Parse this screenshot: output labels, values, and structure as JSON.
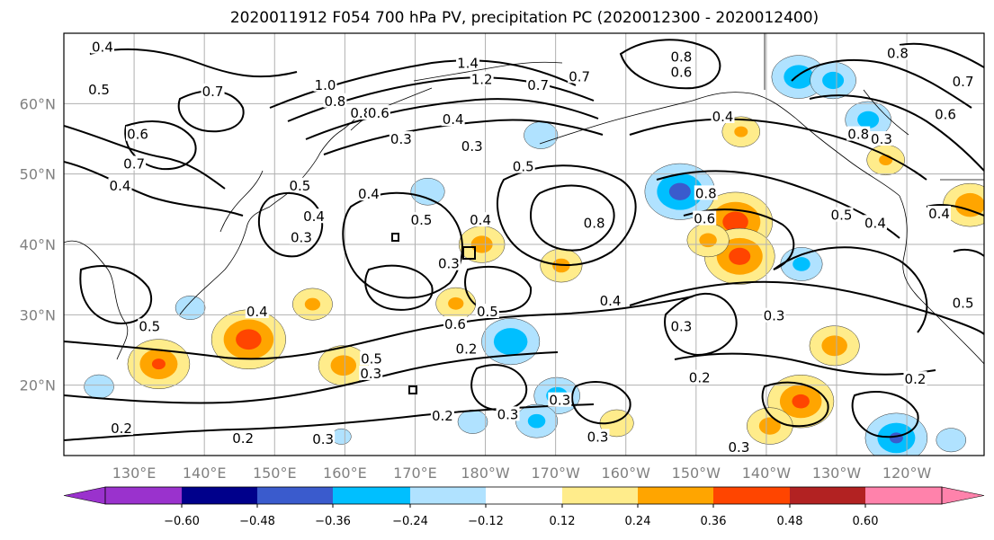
{
  "chart_data": {
    "type": "map",
    "title": "2020011912 F054 700 hPa PV, precipitation PC (2020012300 - 2020012400)",
    "x_ticks": [
      "130°E",
      "140°E",
      "150°E",
      "160°E",
      "170°E",
      "180°W",
      "170°W",
      "160°W",
      "150°W",
      "140°W",
      "130°W",
      "120°W"
    ],
    "x_tick_lon": [
      130,
      140,
      150,
      160,
      170,
      180,
      190,
      200,
      210,
      220,
      230,
      240
    ],
    "y_ticks": [
      "60°N",
      "50°N",
      "40°N",
      "30°N",
      "20°N"
    ],
    "y_tick_lat": [
      60,
      50,
      40,
      30,
      20
    ],
    "lon_range": [
      120,
      251
    ],
    "lat_range": [
      10,
      70
    ],
    "grid": true,
    "colorbar": {
      "orientation": "horizontal",
      "extend": "both",
      "ticks": [
        "−0.60",
        "−0.48",
        "−0.36",
        "−0.24",
        "−0.12",
        "0.12",
        "0.24",
        "0.36",
        "0.48",
        "0.60"
      ],
      "colors": [
        "#9a32cd",
        "#00008b",
        "#3a5bcd",
        "#00bfff",
        "#b0e2ff",
        "#ffffff",
        "#ffec8b",
        "#ffa500",
        "#ff4500",
        "#b22222",
        "#ff82ab"
      ]
    },
    "contour_labels": [
      {
        "text": "0.4",
        "lon": 125.5,
        "lat": 67.9
      },
      {
        "text": "0.5",
        "lon": 125.0,
        "lat": 61.8
      },
      {
        "text": "0.7",
        "lon": 141.2,
        "lat": 61.6
      },
      {
        "text": "0.6",
        "lon": 130.5,
        "lat": 55.5
      },
      {
        "text": "0.7",
        "lon": 130.0,
        "lat": 51.3
      },
      {
        "text": "1.0",
        "lon": 157.2,
        "lat": 62.5
      },
      {
        "text": "0.8",
        "lon": 158.6,
        "lat": 60.2
      },
      {
        "text": "1.4",
        "lon": 177.5,
        "lat": 65.6
      },
      {
        "text": "1.2",
        "lon": 179.5,
        "lat": 63.3
      },
      {
        "text": "0.7",
        "lon": 187.5,
        "lat": 62.5
      },
      {
        "text": "0.8",
        "lon": 162.3,
        "lat": 58.5
      },
      {
        "text": "0.6",
        "lon": 164.8,
        "lat": 58.5
      },
      {
        "text": "0.4",
        "lon": 175.4,
        "lat": 57.6
      },
      {
        "text": "0.3",
        "lon": 168.0,
        "lat": 54.8
      },
      {
        "text": "0.3",
        "lon": 178.1,
        "lat": 53.8
      },
      {
        "text": "0.5",
        "lon": 185.4,
        "lat": 50.9
      },
      {
        "text": "0.4",
        "lon": 163.4,
        "lat": 47.0
      },
      {
        "text": "0.5",
        "lon": 153.6,
        "lat": 48.2
      },
      {
        "text": "0.4",
        "lon": 155.6,
        "lat": 43.8
      },
      {
        "text": "0.3",
        "lon": 153.8,
        "lat": 40.8
      },
      {
        "text": "0.5",
        "lon": 170.9,
        "lat": 43.3
      },
      {
        "text": "0.4",
        "lon": 179.3,
        "lat": 43.3
      },
      {
        "text": "0.8",
        "lon": 195.5,
        "lat": 42.9
      },
      {
        "text": "0.3",
        "lon": 174.8,
        "lat": 37.1
      },
      {
        "text": "0.8",
        "lon": 207.9,
        "lat": 66.5
      },
      {
        "text": "0.6",
        "lon": 207.9,
        "lat": 64.3
      },
      {
        "text": "0.7",
        "lon": 193.4,
        "lat": 63.7
      },
      {
        "text": "0.4",
        "lon": 213.8,
        "lat": 58.0
      },
      {
        "text": "0.8",
        "lon": 211.4,
        "lat": 47.1
      },
      {
        "text": "0.6",
        "lon": 211.2,
        "lat": 43.5
      },
      {
        "text": "0.5",
        "lon": 230.7,
        "lat": 44.0
      },
      {
        "text": "0.8",
        "lon": 233.1,
        "lat": 55.5
      },
      {
        "text": "0.4",
        "lon": 235.5,
        "lat": 42.9
      },
      {
        "text": "0.3",
        "lon": 236.4,
        "lat": 54.8
      },
      {
        "text": "0.8",
        "lon": 238.7,
        "lat": 67.0
      },
      {
        "text": "0.6",
        "lon": 245.5,
        "lat": 58.3
      },
      {
        "text": "0.4",
        "lon": 128.0,
        "lat": 48.2
      },
      {
        "text": "0.4",
        "lon": 147.5,
        "lat": 30.3
      },
      {
        "text": "0.5",
        "lon": 132.2,
        "lat": 28.2
      },
      {
        "text": "0.6",
        "lon": 175.7,
        "lat": 28.5
      },
      {
        "text": "0.5",
        "lon": 180.3,
        "lat": 30.3
      },
      {
        "text": "0.4",
        "lon": 197.8,
        "lat": 31.8
      },
      {
        "text": "0.3",
        "lon": 207.9,
        "lat": 28.2
      },
      {
        "text": "0.3",
        "lon": 221.1,
        "lat": 29.7
      },
      {
        "text": "0.5",
        "lon": 163.8,
        "lat": 23.6
      },
      {
        "text": "0.3",
        "lon": 163.7,
        "lat": 21.5
      },
      {
        "text": "0.2",
        "lon": 177.3,
        "lat": 25.0
      },
      {
        "text": "0.2",
        "lon": 210.5,
        "lat": 20.9
      },
      {
        "text": "0.2",
        "lon": 241.2,
        "lat": 20.7
      },
      {
        "text": "0.2",
        "lon": 173.9,
        "lat": 15.5
      },
      {
        "text": "0.3",
        "lon": 183.2,
        "lat": 15.7
      },
      {
        "text": "0.3",
        "lon": 190.6,
        "lat": 17.7
      },
      {
        "text": "0.3",
        "lon": 156.9,
        "lat": 12.2
      },
      {
        "text": "0.2",
        "lon": 145.5,
        "lat": 12.3
      },
      {
        "text": "0.2",
        "lon": 128.2,
        "lat": 13.7
      },
      {
        "text": "0.3",
        "lon": 196.0,
        "lat": 12.5
      },
      {
        "text": "0.3",
        "lon": 216.1,
        "lat": 11.0
      },
      {
        "text": "0.5",
        "lon": 248.0,
        "lat": 31.5
      },
      {
        "text": "0.4",
        "lon": 244.6,
        "lat": 44.2
      },
      {
        "text": "0.7",
        "lon": 248.0,
        "lat": 63.0
      }
    ],
    "precip_anomaly_blobs": [
      {
        "lon": 146.3,
        "lat": 26.5,
        "value": 0.42
      },
      {
        "lon": 133.5,
        "lat": 23.0,
        "value": 0.36
      },
      {
        "lon": 159.8,
        "lat": 22.8,
        "value": 0.3
      },
      {
        "lon": 179.5,
        "lat": 40.0,
        "value": 0.28
      },
      {
        "lon": 190.8,
        "lat": 37.0,
        "value": 0.26
      },
      {
        "lon": 175.8,
        "lat": 31.6,
        "value": 0.25
      },
      {
        "lon": 155.4,
        "lat": 31.5,
        "value": 0.25
      },
      {
        "lon": 215.6,
        "lat": 43.2,
        "value": 0.42
      },
      {
        "lon": 216.2,
        "lat": 38.3,
        "value": 0.4
      },
      {
        "lon": 211.7,
        "lat": 40.6,
        "value": 0.26
      },
      {
        "lon": 216.4,
        "lat": 56.0,
        "value": 0.24
      },
      {
        "lon": 224.9,
        "lat": 17.7,
        "value": 0.38
      },
      {
        "lon": 220.5,
        "lat": 14.2,
        "value": 0.28
      },
      {
        "lon": 229.7,
        "lat": 25.6,
        "value": 0.3
      },
      {
        "lon": 249.0,
        "lat": 45.6,
        "value": 0.32
      },
      {
        "lon": 237.0,
        "lat": 52.0,
        "value": 0.24
      },
      {
        "lon": 198.7,
        "lat": 14.6,
        "value": 0.22
      },
      {
        "lon": 207.7,
        "lat": 47.5,
        "value": -0.4
      },
      {
        "lon": 183.6,
        "lat": 26.2,
        "value": -0.34
      },
      {
        "lon": 190.2,
        "lat": 18.5,
        "value": -0.28
      },
      {
        "lon": 187.3,
        "lat": 14.9,
        "value": -0.26
      },
      {
        "lon": 225.0,
        "lat": 37.2,
        "value": -0.26
      },
      {
        "lon": 238.5,
        "lat": 12.5,
        "value": -0.36
      },
      {
        "lon": 224.6,
        "lat": 63.8,
        "value": -0.32
      },
      {
        "lon": 229.5,
        "lat": 63.3,
        "value": -0.28
      },
      {
        "lon": 234.5,
        "lat": 57.7,
        "value": -0.28
      },
      {
        "lon": 171.8,
        "lat": 47.5,
        "value": -0.22
      },
      {
        "lon": 187.9,
        "lat": 55.5,
        "value": -0.22
      },
      {
        "lon": 138.0,
        "lat": 31.0,
        "value": -0.2
      },
      {
        "lon": 125.0,
        "lat": 19.8,
        "value": -0.2
      },
      {
        "lon": 178.2,
        "lat": 14.8,
        "value": -0.2
      },
      {
        "lon": 246.3,
        "lat": 12.2,
        "value": -0.2
      },
      {
        "lon": 159.5,
        "lat": 12.7,
        "value": -0.15
      }
    ]
  }
}
